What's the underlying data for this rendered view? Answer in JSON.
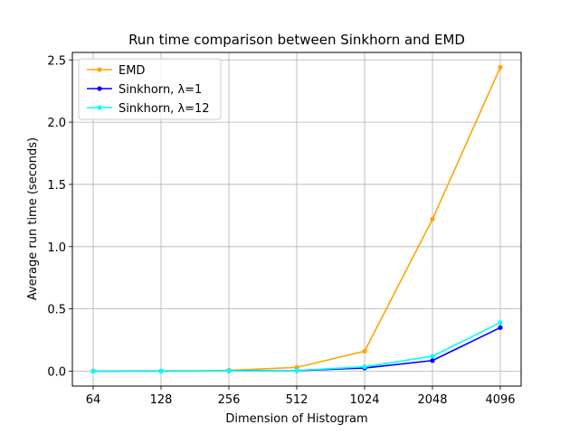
{
  "chart_data": {
    "type": "line",
    "title": "Run time comparison between Sinkhorn and EMD",
    "xlabel": "Dimension of Histogram",
    "ylabel": "Average run time (seconds)",
    "categories": [
      "64",
      "128",
      "256",
      "512",
      "1024",
      "2048",
      "4096"
    ],
    "ylim": [
      -0.12,
      2.56
    ],
    "yticks": [
      "0.0",
      "0.5",
      "1.0",
      "1.5",
      "2.0",
      "2.5"
    ],
    "ytick_values": [
      0,
      0.5,
      1.0,
      1.5,
      2.0,
      2.5
    ],
    "grid": true,
    "legend_position": "top-left",
    "series": [
      {
        "name": "EMD",
        "color": "#ffa500",
        "values": [
          0.001,
          0.002,
          0.006,
          0.03,
          0.16,
          1.22,
          2.44
        ]
      },
      {
        "name": "Sinkhorn, λ=1",
        "color": "#0000ff",
        "values": [
          0.0,
          0.0,
          0.002,
          0.005,
          0.025,
          0.085,
          0.35
        ]
      },
      {
        "name": "Sinkhorn, λ=12",
        "color": "#00ffff",
        "values": [
          0.0,
          0.0,
          0.002,
          0.006,
          0.035,
          0.12,
          0.39
        ]
      }
    ]
  }
}
